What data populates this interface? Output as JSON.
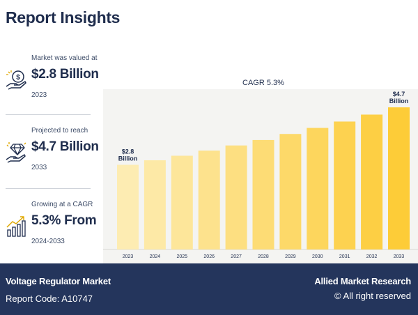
{
  "header": {
    "title": "Report Insights"
  },
  "stats": [
    {
      "label": "Market was valued at",
      "value": "$2.8 Billion",
      "sub": "2023",
      "icon": "money-hand-icon"
    },
    {
      "label": "Projected to reach",
      "value": "$4.7 Billion",
      "sub": "2033",
      "icon": "diamond-hand-icon"
    },
    {
      "label": "Growing at a CAGR",
      "value": "5.3% From",
      "sub": "2024-2033",
      "icon": "growth-chart-icon"
    }
  ],
  "footer": {
    "market": "Voltage Regulator Market",
    "code": "Report Code: A10747",
    "brand": "Allied Market Research",
    "rights": "© All right reserved"
  },
  "colors": {
    "navy": "#24355c",
    "bar_light": "#fde9a8",
    "bar_dark": "#fdcd3a",
    "chart_bg": "#f4f4f2"
  },
  "chart_data": {
    "type": "bar",
    "title": "CAGR 5.3%",
    "categories": [
      "2023",
      "2024",
      "2025",
      "2026",
      "2027",
      "2028",
      "2029",
      "2030",
      "2031",
      "2032",
      "2033"
    ],
    "values": [
      2.8,
      2.95,
      3.1,
      3.27,
      3.44,
      3.62,
      3.82,
      4.02,
      4.23,
      4.46,
      4.7
    ],
    "data_labels": {
      "0": [
        "$2.8",
        "Billion"
      ],
      "10": [
        "$4.7",
        "Billion"
      ]
    },
    "xlabel": "",
    "ylabel": "",
    "ylim": [
      0,
      5.3
    ],
    "grid": false
  }
}
